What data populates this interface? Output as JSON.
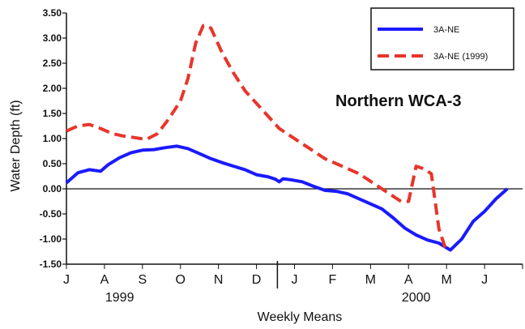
{
  "chart_data": {
    "type": "line",
    "title": "",
    "annotation": "Northern WCA-3",
    "ylabel": "Water Depth (ft)",
    "xlabel": "Weekly Means",
    "ylim": [
      -1.5,
      3.5
    ],
    "yticks": [
      "3.50",
      "3.00",
      "2.50",
      "2.00",
      "1.50",
      "1.00",
      "0.50",
      "0.00",
      "-0.50",
      "-1.00",
      "-1.50"
    ],
    "xlim": [
      0,
      12
    ],
    "month_ticks": [
      {
        "label": "J",
        "x": 0
      },
      {
        "label": "A",
        "x": 1
      },
      {
        "label": "S",
        "x": 2
      },
      {
        "label": "O",
        "x": 3
      },
      {
        "label": "N",
        "x": 4
      },
      {
        "label": "D",
        "x": 5
      },
      {
        "label": "J",
        "x": 6
      },
      {
        "label": "F",
        "x": 7
      },
      {
        "label": "M",
        "x": 8
      },
      {
        "label": "A",
        "x": 9
      },
      {
        "label": "M",
        "x": 10
      },
      {
        "label": "J",
        "x": 11
      }
    ],
    "year_divider_x": 5.55,
    "year_labels": [
      {
        "label": "1999",
        "x": 1.4
      },
      {
        "label": "2000",
        "x": 9.2
      }
    ],
    "reference_line_y": 0,
    "legend_position": "top-right",
    "series": [
      {
        "name": "3A-NE",
        "color": "#1a1aff",
        "style": "solid",
        "x": [
          0,
          0.3,
          0.6,
          0.9,
          1.1,
          1.4,
          1.7,
          2.0,
          2.3,
          2.6,
          2.9,
          3.2,
          3.5,
          3.8,
          4.1,
          4.4,
          4.7,
          5.0,
          5.3,
          5.5,
          5.6,
          5.7,
          5.9,
          6.2,
          6.5,
          6.8,
          7.1,
          7.4,
          7.7,
          8.0,
          8.3,
          8.6,
          8.9,
          9.2,
          9.5,
          9.8,
          10.1,
          10.4,
          10.7,
          11.0,
          11.3,
          11.6
        ],
        "y": [
          0.12,
          0.32,
          0.38,
          0.35,
          0.48,
          0.62,
          0.72,
          0.77,
          0.78,
          0.82,
          0.85,
          0.8,
          0.7,
          0.6,
          0.52,
          0.45,
          0.38,
          0.28,
          0.24,
          0.19,
          0.14,
          0.2,
          0.18,
          0.14,
          0.05,
          -0.03,
          -0.05,
          -0.1,
          -0.2,
          -0.3,
          -0.4,
          -0.58,
          -0.78,
          -0.92,
          -1.02,
          -1.08,
          -1.22,
          -1.0,
          -0.65,
          -0.45,
          -0.2,
          0.0
        ]
      },
      {
        "name": "3A-NE (1999)",
        "color": "#e8352b",
        "style": "dashed",
        "x": [
          0,
          0.3,
          0.6,
          0.9,
          1.2,
          1.5,
          1.8,
          2.1,
          2.4,
          2.7,
          3.0,
          3.2,
          3.4,
          3.6,
          3.8,
          4.1,
          4.4,
          4.7,
          5.0,
          5.3,
          5.6,
          5.9,
          6.2,
          6.5,
          6.8,
          7.1,
          7.4,
          7.7,
          8.0,
          8.3,
          8.6,
          8.8,
          9.0,
          9.2,
          9.4,
          9.6,
          9.8,
          10.0
        ],
        "y": [
          1.15,
          1.25,
          1.28,
          1.2,
          1.1,
          1.05,
          1.02,
          0.98,
          1.1,
          1.4,
          1.75,
          2.2,
          2.9,
          3.25,
          3.2,
          2.7,
          2.3,
          1.95,
          1.7,
          1.45,
          1.2,
          1.05,
          0.9,
          0.75,
          0.6,
          0.5,
          0.4,
          0.3,
          0.15,
          0.0,
          -0.15,
          -0.25,
          -0.25,
          0.45,
          0.4,
          0.3,
          -0.8,
          -1.25
        ]
      }
    ]
  }
}
